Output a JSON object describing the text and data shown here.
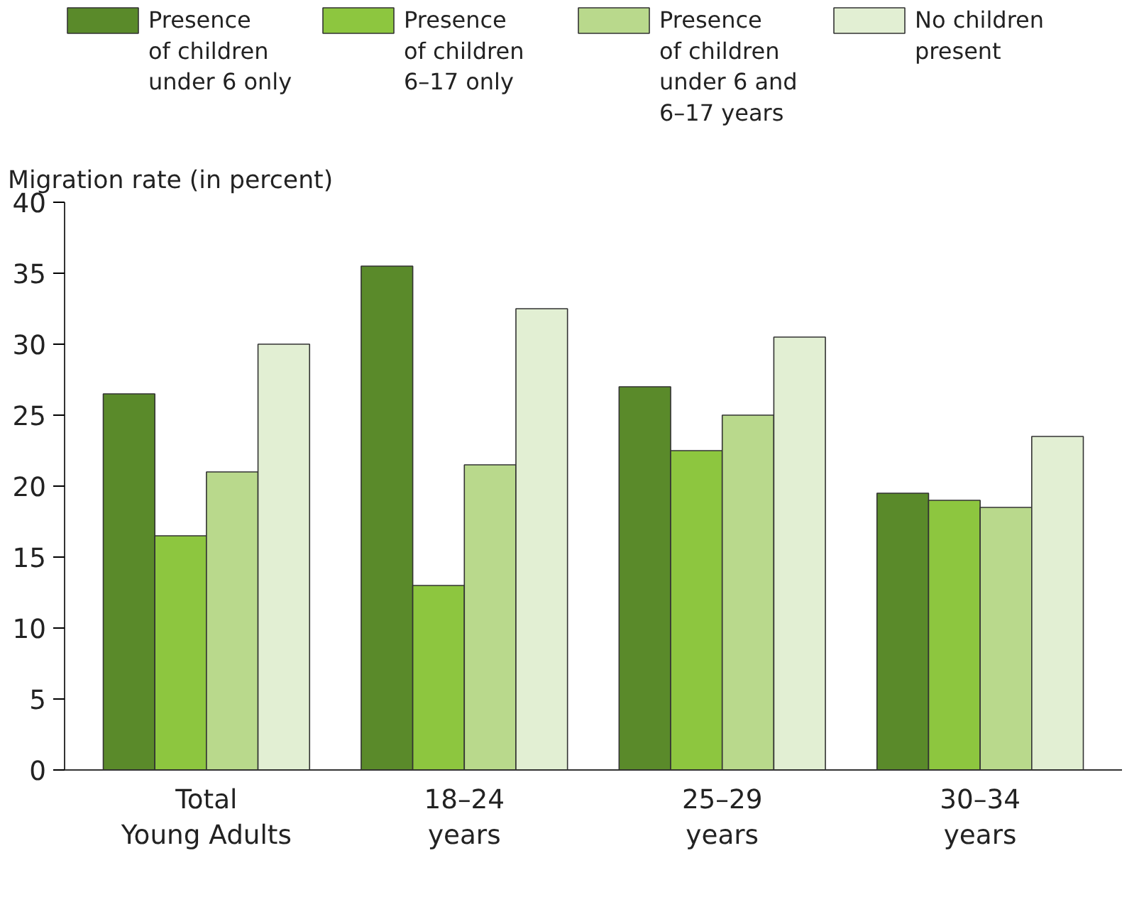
{
  "chart_data": {
    "type": "bar",
    "ylabel": "Migration rate (in percent)",
    "categories": [
      "Total\nYoung Adults",
      "18–24\nyears",
      "25–29\nyears",
      "30–34\nyears"
    ],
    "series": [
      {
        "name": "Presence\nof children\nunder 6 only",
        "color": "#5a8a2a",
        "values": [
          26.5,
          35.5,
          27,
          19.5
        ]
      },
      {
        "name": "Presence\nof children\n6–17 only",
        "color": "#8dc63f",
        "values": [
          16.5,
          13,
          22.5,
          19
        ]
      },
      {
        "name": "Presence\nof children\nunder 6 and\n6–17 years",
        "color": "#b9d98c",
        "values": [
          21,
          21.5,
          25,
          18.5
        ]
      },
      {
        "name": "No children\npresent",
        "color": "#e2efd3",
        "values": [
          30,
          32.5,
          30.5,
          23.5
        ]
      }
    ],
    "ylim": [
      0,
      40
    ],
    "yticks": [
      0,
      5,
      10,
      15,
      20,
      25,
      30,
      35,
      40
    ],
    "grid": false,
    "legend": "top"
  }
}
